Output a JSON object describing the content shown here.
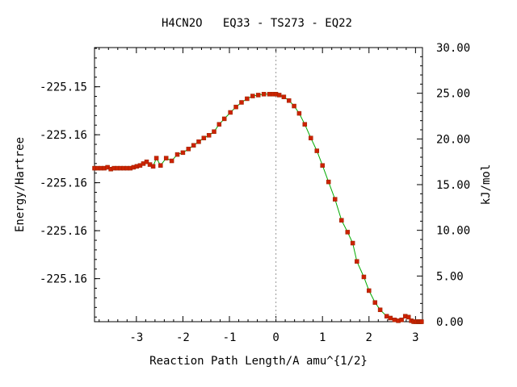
{
  "chart_data": {
    "type": "line",
    "title": "H4CN2O   EQ33 - TS273 - EQ22",
    "xlabel": "Reaction Path Length/A amu^{1/2}",
    "ylabel": "Energy/Hartree",
    "y2label": "kJ/mol",
    "xlim": [
      -3.9,
      3.15
    ],
    "y2lim": [
      0,
      30
    ],
    "x_ticks": [
      -3,
      -2,
      -1,
      0,
      1,
      2,
      3
    ],
    "x_tick_labels": [
      "-3",
      "-2",
      "-1",
      "0",
      "1",
      "2",
      "3"
    ],
    "y_left_ticks_kj": [
      25.71,
      20.46,
      15.21,
      9.96,
      4.71
    ],
    "y_left_tick_labels": [
      "-225.15",
      "-225.16",
      "-225.16",
      "-225.16",
      "-225.16"
    ],
    "y_right_ticks": [
      0,
      5,
      10,
      15,
      20,
      25,
      30
    ],
    "y_right_tick_labels": [
      "0.00",
      "5.00",
      "10.00",
      "15.00",
      "20.00",
      "25.00",
      "30.00"
    ],
    "ts_marker_x": 0,
    "grid": false,
    "line_color": "#00aa00",
    "marker_color": "#cc2200",
    "series": [
      {
        "x": [
          -3.9,
          -3.83,
          -3.76,
          -3.69,
          -3.62,
          -3.55,
          -3.48,
          -3.41,
          -3.34,
          -3.27,
          -3.2,
          -3.13,
          -3.06,
          -2.99,
          -2.92,
          -2.85,
          -2.78,
          -2.71,
          -2.64,
          -2.57,
          -2.48,
          -2.36,
          -2.24,
          -2.12,
          -2.0,
          -1.88,
          -1.77,
          -1.66,
          -1.55,
          -1.44,
          -1.33,
          -1.22,
          -1.11,
          -0.98,
          -0.86,
          -0.74,
          -0.62,
          -0.5,
          -0.38,
          -0.26,
          -0.14,
          -0.06,
          0.0,
          0.07,
          0.17,
          0.28,
          0.39,
          0.5,
          0.62,
          0.75,
          0.88,
          1.0,
          1.13,
          1.27,
          1.41,
          1.54,
          1.65,
          1.74,
          1.89,
          2.0,
          2.13,
          2.24,
          2.38,
          2.46,
          2.55,
          2.63,
          2.7,
          2.78,
          2.85,
          2.91,
          2.96,
          3.0,
          3.03,
          3.06,
          3.08,
          3.1,
          3.12,
          3.13
        ],
        "y": [
          16.8,
          16.8,
          16.8,
          16.8,
          16.9,
          16.7,
          16.8,
          16.8,
          16.8,
          16.8,
          16.8,
          16.8,
          16.9,
          17.0,
          17.1,
          17.3,
          17.5,
          17.2,
          17.0,
          17.9,
          17.1,
          17.9,
          17.6,
          18.3,
          18.5,
          18.9,
          19.3,
          19.7,
          20.1,
          20.4,
          20.8,
          21.6,
          22.2,
          22.9,
          23.5,
          24.0,
          24.4,
          24.7,
          24.8,
          24.9,
          24.9,
          24.9,
          24.9,
          24.8,
          24.6,
          24.2,
          23.6,
          22.8,
          21.6,
          20.1,
          18.7,
          17.1,
          15.3,
          13.4,
          11.1,
          9.8,
          8.6,
          6.6,
          4.9,
          3.4,
          2.1,
          1.3,
          0.6,
          0.4,
          0.2,
          0.1,
          0.2,
          0.6,
          0.5,
          0.1,
          0.0,
          0.0,
          0.0,
          0.0,
          0.0,
          0.0,
          0.0,
          0.0
        ]
      }
    ]
  }
}
